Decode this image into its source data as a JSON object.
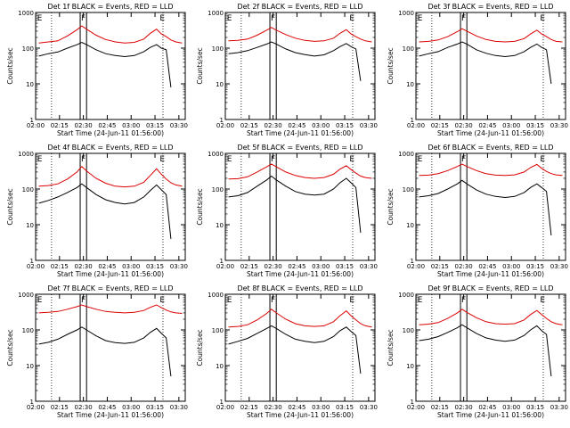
{
  "figure": {
    "xlabel": "Start Time (24-Jun-11 01:56:00)",
    "ylabel": "Counts/sec",
    "x_tick_labels": [
      "02:00",
      "02:15",
      "02:30",
      "02:45",
      "03:00",
      "03:15",
      "03:30"
    ],
    "y_tick_labels": [
      "1",
      "10",
      "100",
      "1000"
    ],
    "colors": {
      "events": "#000000",
      "lld": "#dd0000",
      "background": "#ffffff"
    }
  },
  "chart_data": [
    {
      "type": "line",
      "title": "Det 1f BLACK = Events, RED = LLD",
      "xlabel": "Start Time (24-Jun-11 01:56:00)",
      "ylabel": "Counts/sec",
      "y_scale": "log",
      "xlim": [
        "02:00",
        "03:34"
      ],
      "ylim": [
        1,
        1000
      ],
      "x": [
        "02:02",
        "02:08",
        "02:14",
        "02:20",
        "02:26",
        "02:29",
        "02:32",
        "02:38",
        "02:44",
        "02:50",
        "02:56",
        "03:02",
        "03:08",
        "03:12",
        "03:16",
        "03:19",
        "03:22",
        "03:25",
        "03:28",
        "03:32"
      ],
      "series": [
        {
          "name": "Events",
          "color": "#000000",
          "values": [
            60,
            70,
            78,
            100,
            125,
            145,
            125,
            90,
            70,
            62,
            58,
            62,
            80,
            105,
            125,
            100,
            90,
            8,
            null,
            null
          ]
        },
        {
          "name": "LLD",
          "color": "#dd0000",
          "values": [
            140,
            150,
            160,
            220,
            330,
            420,
            340,
            230,
            175,
            150,
            140,
            145,
            180,
            260,
            340,
            250,
            210,
            170,
            150,
            140
          ]
        }
      ],
      "markers": {
        "E_left": "02:01",
        "F_in": "02:28",
        "F_out": "02:32",
        "E_right": "03:18",
        "dotted": [
          "02:10",
          "03:20"
        ]
      }
    },
    {
      "type": "line",
      "title": "Det 2f BLACK = Events, RED = LLD",
      "xlabel": "Start Time (24-Jun-11 01:56:00)",
      "ylabel": "Counts/sec",
      "y_scale": "log",
      "xlim": [
        "02:00",
        "03:34"
      ],
      "ylim": [
        1,
        1000
      ],
      "x": [
        "02:02",
        "02:08",
        "02:14",
        "02:20",
        "02:26",
        "02:29",
        "02:32",
        "02:38",
        "02:44",
        "02:50",
        "02:56",
        "03:02",
        "03:08",
        "03:12",
        "03:16",
        "03:19",
        "03:22",
        "03:25",
        "03:28",
        "03:32"
      ],
      "series": [
        {
          "name": "Events",
          "color": "#000000",
          "values": [
            70,
            75,
            85,
            105,
            130,
            150,
            130,
            95,
            75,
            66,
            60,
            65,
            85,
            110,
            135,
            110,
            95,
            12,
            null,
            null
          ]
        },
        {
          "name": "LLD",
          "color": "#dd0000",
          "values": [
            160,
            165,
            180,
            230,
            320,
            380,
            320,
            240,
            190,
            165,
            155,
            160,
            190,
            260,
            330,
            250,
            210,
            180,
            160,
            150
          ]
        }
      ],
      "markers": {
        "E_left": "02:01",
        "F_in": "02:28",
        "F_out": "02:32",
        "E_right": "03:18",
        "dotted": [
          "02:10",
          "03:20"
        ]
      }
    },
    {
      "type": "line",
      "title": "Det 3f BLACK = Events, RED = LLD",
      "xlabel": "Start Time (24-Jun-11 01:56:00)",
      "ylabel": "Counts/sec",
      "y_scale": "log",
      "xlim": [
        "02:00",
        "03:34"
      ],
      "ylim": [
        1,
        1000
      ],
      "x": [
        "02:02",
        "02:08",
        "02:14",
        "02:20",
        "02:26",
        "02:29",
        "02:32",
        "02:38",
        "02:44",
        "02:50",
        "02:56",
        "03:02",
        "03:08",
        "03:12",
        "03:16",
        "03:19",
        "03:22",
        "03:25",
        "03:28",
        "03:32"
      ],
      "series": [
        {
          "name": "Events",
          "color": "#000000",
          "values": [
            60,
            70,
            80,
            105,
            130,
            150,
            130,
            90,
            72,
            62,
            58,
            62,
            80,
            105,
            130,
            105,
            90,
            10,
            null,
            null
          ]
        },
        {
          "name": "LLD",
          "color": "#dd0000",
          "values": [
            150,
            155,
            170,
            210,
            290,
            350,
            300,
            220,
            175,
            155,
            150,
            155,
            185,
            250,
            320,
            250,
            210,
            175,
            155,
            150
          ]
        }
      ],
      "markers": {
        "E_left": "02:01",
        "F_in": "02:28",
        "F_out": "02:32",
        "E_right": "03:18",
        "dotted": [
          "02:10",
          "03:20"
        ]
      }
    },
    {
      "type": "line",
      "title": "Det 4f BLACK = Events, RED = LLD",
      "xlabel": "Start Time (24-Jun-11 01:56:00)",
      "ylabel": "Counts/sec",
      "y_scale": "log",
      "xlim": [
        "02:00",
        "03:34"
      ],
      "ylim": [
        1,
        1000
      ],
      "x": [
        "02:02",
        "02:08",
        "02:14",
        "02:20",
        "02:26",
        "02:29",
        "02:32",
        "02:38",
        "02:44",
        "02:50",
        "02:56",
        "03:02",
        "03:08",
        "03:12",
        "03:16",
        "03:19",
        "03:22",
        "03:25",
        "03:28",
        "03:32"
      ],
      "series": [
        {
          "name": "Events",
          "color": "#000000",
          "values": [
            40,
            48,
            60,
            80,
            110,
            140,
            110,
            70,
            50,
            42,
            38,
            42,
            60,
            90,
            130,
            95,
            70,
            4,
            null,
            null
          ]
        },
        {
          "name": "LLD",
          "color": "#dd0000",
          "values": [
            120,
            125,
            140,
            190,
            300,
            430,
            320,
            200,
            145,
            120,
            115,
            120,
            155,
            240,
            370,
            260,
            190,
            150,
            130,
            120
          ]
        }
      ],
      "markers": {
        "E_left": "02:01",
        "F_in": "02:28",
        "F_out": "02:32",
        "E_right": "03:18",
        "dotted": [
          "02:10",
          "03:20"
        ]
      }
    },
    {
      "type": "line",
      "title": "Det 5f BLACK = Events, RED = LLD",
      "xlabel": "Start Time (24-Jun-11 01:56:00)",
      "ylabel": "Counts/sec",
      "y_scale": "log",
      "xlim": [
        "02:00",
        "03:34"
      ],
      "ylim": [
        1,
        1000
      ],
      "x": [
        "02:02",
        "02:08",
        "02:14",
        "02:20",
        "02:26",
        "02:29",
        "02:32",
        "02:38",
        "02:44",
        "02:50",
        "02:56",
        "03:02",
        "03:08",
        "03:12",
        "03:16",
        "03:19",
        "03:22",
        "03:25",
        "03:28",
        "03:32"
      ],
      "series": [
        {
          "name": "Events",
          "color": "#000000",
          "values": [
            60,
            65,
            80,
            120,
            180,
            230,
            180,
            120,
            85,
            72,
            68,
            72,
            100,
            150,
            200,
            150,
            110,
            6,
            null,
            null
          ]
        },
        {
          "name": "LLD",
          "color": "#dd0000",
          "values": [
            190,
            195,
            220,
            300,
            420,
            500,
            420,
            300,
            240,
            210,
            200,
            210,
            260,
            360,
            450,
            350,
            280,
            230,
            210,
            200
          ]
        }
      ],
      "markers": {
        "E_left": "02:01",
        "F_in": "02:28",
        "F_out": "02:32",
        "E_right": "03:18",
        "dotted": [
          "02:10",
          "03:20"
        ]
      }
    },
    {
      "type": "line",
      "title": "Det 6f BLACK = Events, RED = LLD",
      "xlabel": "Start Time (24-Jun-11 01:56:00)",
      "ylabel": "Counts/sec",
      "y_scale": "log",
      "xlim": [
        "02:00",
        "03:34"
      ],
      "ylim": [
        1,
        1000
      ],
      "x": [
        "02:02",
        "02:08",
        "02:14",
        "02:20",
        "02:26",
        "02:29",
        "02:32",
        "02:38",
        "02:44",
        "02:50",
        "02:56",
        "03:02",
        "03:08",
        "03:12",
        "03:16",
        "03:19",
        "03:22",
        "03:25",
        "03:28",
        "03:32"
      ],
      "series": [
        {
          "name": "Events",
          "color": "#000000",
          "values": [
            60,
            65,
            75,
            100,
            140,
            175,
            140,
            95,
            72,
            62,
            58,
            62,
            80,
            110,
            140,
            110,
            85,
            5,
            null,
            null
          ]
        },
        {
          "name": "LLD",
          "color": "#dd0000",
          "values": [
            240,
            245,
            270,
            330,
            430,
            500,
            430,
            330,
            270,
            245,
            240,
            250,
            300,
            400,
            490,
            380,
            310,
            270,
            250,
            240
          ]
        }
      ],
      "markers": {
        "E_left": "02:01",
        "F_in": "02:28",
        "F_out": "02:32",
        "E_right": "03:18",
        "dotted": [
          "02:10",
          "03:20"
        ]
      }
    },
    {
      "type": "line",
      "title": "Det 7f BLACK = Events, RED = LLD",
      "xlabel": "Start Time (24-Jun-11 01:56:00)",
      "ylabel": "Counts/sec",
      "y_scale": "log",
      "xlim": [
        "02:00",
        "03:34"
      ],
      "ylim": [
        1,
        1000
      ],
      "x": [
        "02:02",
        "02:08",
        "02:14",
        "02:20",
        "02:26",
        "02:29",
        "02:32",
        "02:38",
        "02:44",
        "02:50",
        "02:56",
        "03:02",
        "03:08",
        "03:12",
        "03:16",
        "03:19",
        "03:22",
        "03:25",
        "03:28",
        "03:32"
      ],
      "series": [
        {
          "name": "Events",
          "color": "#000000",
          "values": [
            40,
            45,
            55,
            75,
            100,
            120,
            100,
            68,
            50,
            44,
            42,
            45,
            60,
            85,
            110,
            80,
            60,
            5,
            null,
            null
          ]
        },
        {
          "name": "LLD",
          "color": "#dd0000",
          "values": [
            300,
            310,
            330,
            380,
            450,
            500,
            450,
            380,
            330,
            310,
            300,
            310,
            350,
            430,
            500,
            420,
            360,
            320,
            300,
            290
          ]
        }
      ],
      "markers": {
        "E_left": "02:01",
        "F_in": "02:28",
        "F_out": "02:32",
        "E_right": "03:18",
        "dotted": [
          "02:10",
          "03:20"
        ]
      }
    },
    {
      "type": "line",
      "title": "Det 8f BLACK = Events, RED = LLD",
      "xlabel": "Start Time (24-Jun-11 01:56:00)",
      "ylabel": "Counts/sec",
      "y_scale": "log",
      "xlim": [
        "02:00",
        "03:34"
      ],
      "ylim": [
        1,
        1000
      ],
      "x": [
        "02:02",
        "02:08",
        "02:14",
        "02:20",
        "02:26",
        "02:29",
        "02:32",
        "02:38",
        "02:44",
        "02:50",
        "02:56",
        "03:02",
        "03:08",
        "03:12",
        "03:16",
        "03:19",
        "03:22",
        "03:25",
        "03:28",
        "03:32"
      ],
      "series": [
        {
          "name": "Events",
          "color": "#000000",
          "values": [
            40,
            48,
            58,
            80,
            110,
            130,
            110,
            75,
            55,
            48,
            44,
            48,
            65,
            95,
            120,
            90,
            70,
            6,
            null,
            null
          ]
        },
        {
          "name": "LLD",
          "color": "#dd0000",
          "values": [
            120,
            125,
            140,
            190,
            290,
            380,
            300,
            200,
            150,
            130,
            125,
            130,
            170,
            250,
            340,
            250,
            190,
            150,
            130,
            120
          ]
        }
      ],
      "markers": {
        "E_left": "02:01",
        "F_in": "02:28",
        "F_out": "02:32",
        "E_right": "03:18",
        "dotted": [
          "02:10",
          "03:20"
        ]
      }
    },
    {
      "type": "line",
      "title": "Det 9f BLACK = Events, RED = LLD",
      "xlabel": "Start Time (24-Jun-11 01:56:00)",
      "ylabel": "Counts/sec",
      "y_scale": "log",
      "xlim": [
        "02:00",
        "03:34"
      ],
      "ylim": [
        1,
        1000
      ],
      "x": [
        "02:02",
        "02:08",
        "02:14",
        "02:20",
        "02:26",
        "02:29",
        "02:32",
        "02:38",
        "02:44",
        "02:50",
        "02:56",
        "03:02",
        "03:08",
        "03:12",
        "03:16",
        "03:19",
        "03:22",
        "03:25",
        "03:28",
        "03:32"
      ],
      "series": [
        {
          "name": "Events",
          "color": "#000000",
          "values": [
            50,
            55,
            65,
            85,
            115,
            140,
            115,
            80,
            60,
            52,
            48,
            52,
            70,
            100,
            130,
            95,
            75,
            5,
            null,
            null
          ]
        },
        {
          "name": "LLD",
          "color": "#dd0000",
          "values": [
            140,
            145,
            160,
            210,
            300,
            380,
            310,
            220,
            170,
            150,
            145,
            150,
            190,
            270,
            350,
            270,
            210,
            170,
            150,
            140
          ]
        }
      ],
      "markers": {
        "E_left": "02:01",
        "F_in": "02:28",
        "F_out": "02:32",
        "E_right": "03:18",
        "dotted": [
          "02:10",
          "03:20"
        ]
      }
    }
  ]
}
